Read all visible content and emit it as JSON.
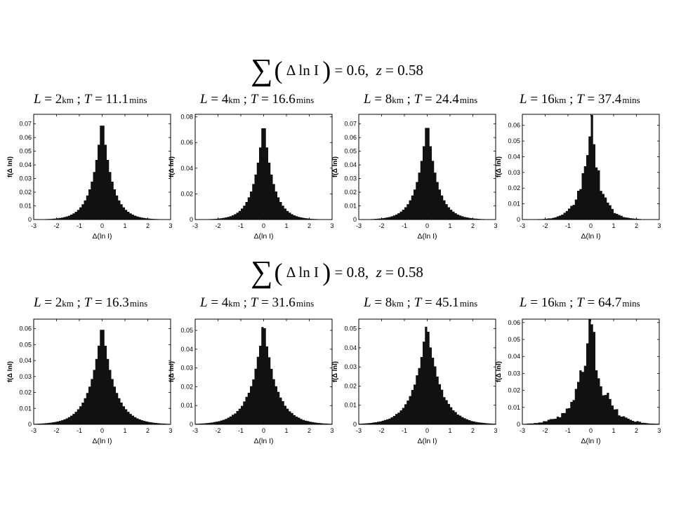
{
  "row_titles": [
    {
      "lhs": "Δ ln I",
      "value": "0.6",
      "z_label": "z",
      "z_value": "0.58"
    },
    {
      "lhs": "Δ ln I",
      "value": "0.8",
      "z_label": "z",
      "z_value": "0.58"
    }
  ],
  "panels": [
    {
      "L": "2",
      "T": "11.1"
    },
    {
      "L": "4",
      "T": "16.6"
    },
    {
      "L": "8",
      "T": "24.4"
    },
    {
      "L": "16",
      "T": "37.4"
    },
    {
      "L": "2",
      "T": "16.3"
    },
    {
      "L": "4",
      "T": "31.6"
    },
    {
      "L": "8",
      "T": "45.1"
    },
    {
      "L": "16",
      "T": "64.7"
    }
  ],
  "units": {
    "length": "km",
    "time": "mins"
  },
  "chart_data": [
    {
      "type": "bar",
      "xlabel": "Δ(ln I)",
      "ylabel": "f(Δ lnI)",
      "xlim": [
        -3,
        3
      ],
      "ylim": [
        0,
        0.077
      ],
      "yticks": [
        0,
        0.01,
        0.02,
        0.03,
        0.04,
        0.05,
        0.06,
        0.07
      ],
      "peak": 0.077,
      "sigma": 0.55,
      "noise": 0.0
    },
    {
      "type": "bar",
      "xlabel": "Δ(ln I)",
      "ylabel": "f(Δ lnI)",
      "xlim": [
        -3,
        3
      ],
      "ylim": [
        0,
        0.082
      ],
      "yticks": [
        0,
        0.02,
        0.04,
        0.06,
        0.08
      ],
      "peak": 0.08,
      "sigma": 0.53,
      "noise": 0.0
    },
    {
      "type": "bar",
      "xlabel": "Δ(ln I)",
      "ylabel": "f(Δ lnI)",
      "xlim": [
        -3,
        3
      ],
      "ylim": [
        0,
        0.077
      ],
      "yticks": [
        0,
        0.01,
        0.02,
        0.03,
        0.04,
        0.05,
        0.06,
        0.07
      ],
      "peak": 0.075,
      "sigma": 0.56,
      "noise": 0.0
    },
    {
      "type": "bar",
      "xlabel": "Δ(ln I)",
      "ylabel": "f(Δ lnI)",
      "xlim": [
        -3,
        3
      ],
      "ylim": [
        0,
        0.067
      ],
      "yticks": [
        0,
        0.01,
        0.02,
        0.03,
        0.04,
        0.05,
        0.06
      ],
      "peak": 0.066,
      "sigma": 0.5,
      "noise": 0.16
    },
    {
      "type": "bar",
      "xlabel": "Δ(ln I)",
      "ylabel": "f(Δ lnI)",
      "xlim": [
        -3,
        3
      ],
      "ylim": [
        0,
        0.066
      ],
      "yticks": [
        0,
        0.01,
        0.02,
        0.03,
        0.04,
        0.05,
        0.06
      ],
      "peak": 0.065,
      "sigma": 0.68,
      "noise": 0.0
    },
    {
      "type": "bar",
      "xlabel": "Δ(ln I)",
      "ylabel": "f(Δ lnI)",
      "xlim": [
        -3,
        3
      ],
      "ylim": [
        0,
        0.056
      ],
      "yticks": [
        0,
        0.01,
        0.02,
        0.03,
        0.04,
        0.05
      ],
      "peak": 0.055,
      "sigma": 0.7,
      "noise": 0.03
    },
    {
      "type": "bar",
      "xlabel": "Δ(ln I)",
      "ylabel": "f(Δ lnI)",
      "xlim": [
        -3,
        3
      ],
      "ylim": [
        0,
        0.055
      ],
      "yticks": [
        0,
        0.01,
        0.02,
        0.03,
        0.04,
        0.05
      ],
      "peak": 0.054,
      "sigma": 0.72,
      "noise": 0.04
    },
    {
      "type": "bar",
      "xlabel": "Δ(ln I)",
      "ylabel": "f(Δ lnI)",
      "xlim": [
        -3,
        3
      ],
      "ylim": [
        0,
        0.062
      ],
      "yticks": [
        0,
        0.01,
        0.02,
        0.03,
        0.04,
        0.05,
        0.06
      ],
      "peak": 0.06,
      "sigma": 0.7,
      "noise": 0.25
    }
  ]
}
